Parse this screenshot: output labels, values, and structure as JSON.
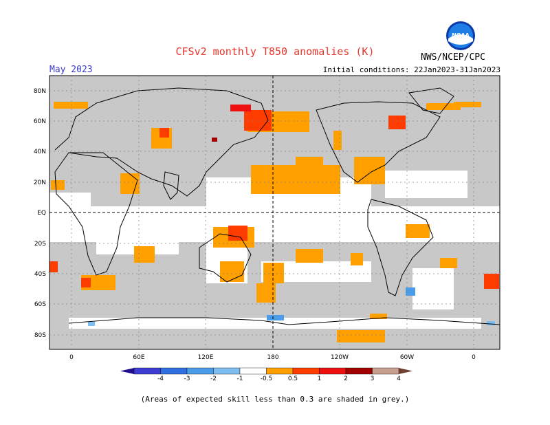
{
  "title": "CFSv2 monthly T850 anomalies (K)",
  "forecast_month": "May 2023",
  "initial_conditions": "Initial conditions: 22Jan2023-31Jan2023",
  "agency": "NWS/NCEP/CPC",
  "logo_text": "NOAA",
  "footnote": "(Areas of expected skill less than 0.3 are shaded in grey.)",
  "map": {
    "lat_labels": [
      "80N",
      "60N",
      "40N",
      "20N",
      "EQ",
      "20S",
      "40S",
      "60S",
      "80S"
    ],
    "lon_labels": [
      "0",
      "60E",
      "120E",
      "180",
      "120W",
      "60W",
      "0"
    ],
    "colors": {
      "skill_mask": "#c8c8c8",
      "land_outline": "#000000",
      "grid": "#808080"
    }
  },
  "legend": {
    "ticks": [
      "-4",
      "-3",
      "-2",
      "-1",
      "-0.5",
      "0.5",
      "1",
      "2",
      "3",
      "4"
    ],
    "colors": [
      "#1e0f8c",
      "#3c3cd2",
      "#2f6fe0",
      "#4a9be8",
      "#7dbdf0",
      "#ffffff",
      "#ffa000",
      "#ff3c00",
      "#ee1010",
      "#a00000",
      "#c8a090",
      "#6e4030"
    ]
  }
}
